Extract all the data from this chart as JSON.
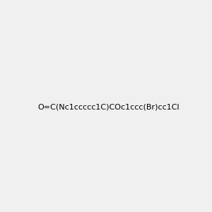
{
  "smiles": "O=C(Nc1ccccc1C)COc1ccc(Br)cc1Cl",
  "title": "",
  "background_color": "#f0f0f0",
  "img_size": [
    300,
    300
  ]
}
